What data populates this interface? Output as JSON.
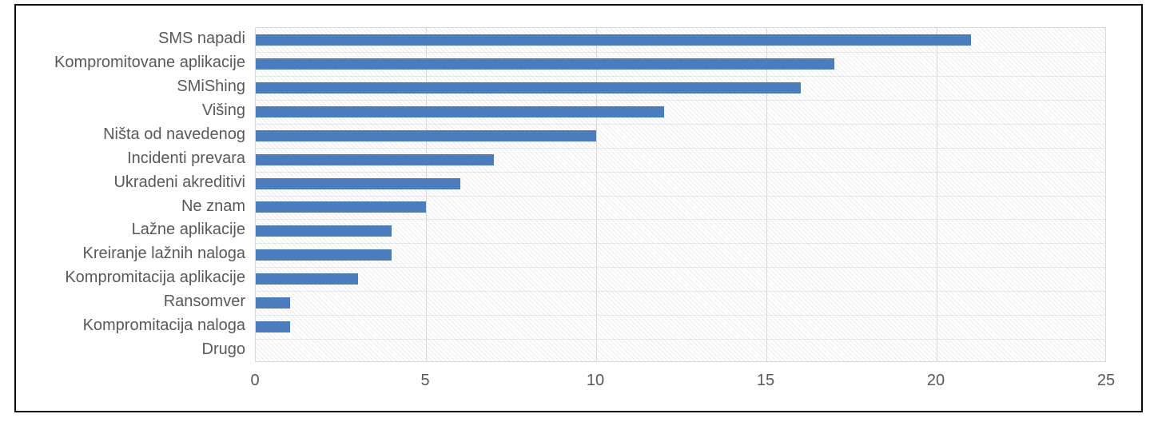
{
  "chart_data": {
    "type": "bar",
    "orientation": "horizontal",
    "title": "",
    "xlabel": "",
    "ylabel": "",
    "categories": [
      "SMS napadi",
      "Kompromitovane aplikacije",
      "SMiShing",
      "Višing",
      "Ništa od navedenog",
      "Incidenti prevara",
      "Ukradeni akreditivi",
      "Ne znam",
      "Lažne aplikacije",
      "Kreiranje lažnih naloga",
      "Kompromitacija aplikacije",
      "Ransomver",
      "Kompromitacija naloga",
      "Drugo"
    ],
    "values": [
      21,
      17,
      16,
      12,
      10,
      7,
      6,
      5,
      4,
      4,
      3,
      1,
      1,
      0
    ],
    "xlim": [
      0,
      25
    ],
    "xticks": [
      "0",
      "5",
      "10",
      "15",
      "20",
      "25"
    ],
    "grid": true,
    "legend": false,
    "colors": {
      "bar": "#4b7cbe",
      "gridline": "#d9d9d9",
      "hatch": "#ececec",
      "axis_label": "#595959",
      "frame_border": "#0d0d0d"
    }
  }
}
